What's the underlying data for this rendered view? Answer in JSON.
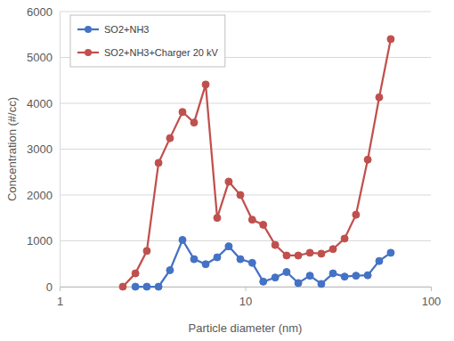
{
  "chart_data": {
    "type": "line",
    "x_label": "Particle diameter (nm)",
    "y_label": "Concentration (#/cc)",
    "log": "x",
    "grid": true,
    "legend": "top-left",
    "marker": "circle",
    "line_style": "solid",
    "xlim": [
      1,
      100
    ],
    "xticks": [
      1,
      10,
      100
    ],
    "ylim": [
      0,
      6000
    ],
    "yticks": [
      0,
      1000,
      2000,
      3000,
      4000,
      5000,
      6000
    ],
    "x": [
      2.19,
      2.56,
      2.95,
      3.41,
      3.93,
      4.59,
      5.3,
      6.12,
      7.06,
      8.15,
      9.41,
      10.9,
      12.5,
      14.5,
      16.7,
      19.3,
      22.3,
      25.7,
      29.7,
      34.3,
      39.5,
      45.7,
      52.7,
      60.8
    ],
    "series": [
      {
        "name": "SO2+NH3",
        "color": "#4472c4",
        "values": [
          null,
          0,
          0,
          0,
          360,
          1020,
          600,
          490,
          640,
          880,
          600,
          520,
          110,
          200,
          320,
          80,
          240,
          60,
          290,
          220,
          240,
          250,
          560,
          740
        ]
      },
      {
        "name": "SO2+NH3+Charger 20 kV",
        "color": "#c0504d",
        "values": [
          0,
          290,
          780,
          2700,
          3240,
          3810,
          3580,
          4410,
          1500,
          2290,
          2000,
          1460,
          1350,
          910,
          680,
          680,
          740,
          720,
          820,
          1050,
          1570,
          2770,
          4130,
          5400
        ]
      }
    ]
  }
}
